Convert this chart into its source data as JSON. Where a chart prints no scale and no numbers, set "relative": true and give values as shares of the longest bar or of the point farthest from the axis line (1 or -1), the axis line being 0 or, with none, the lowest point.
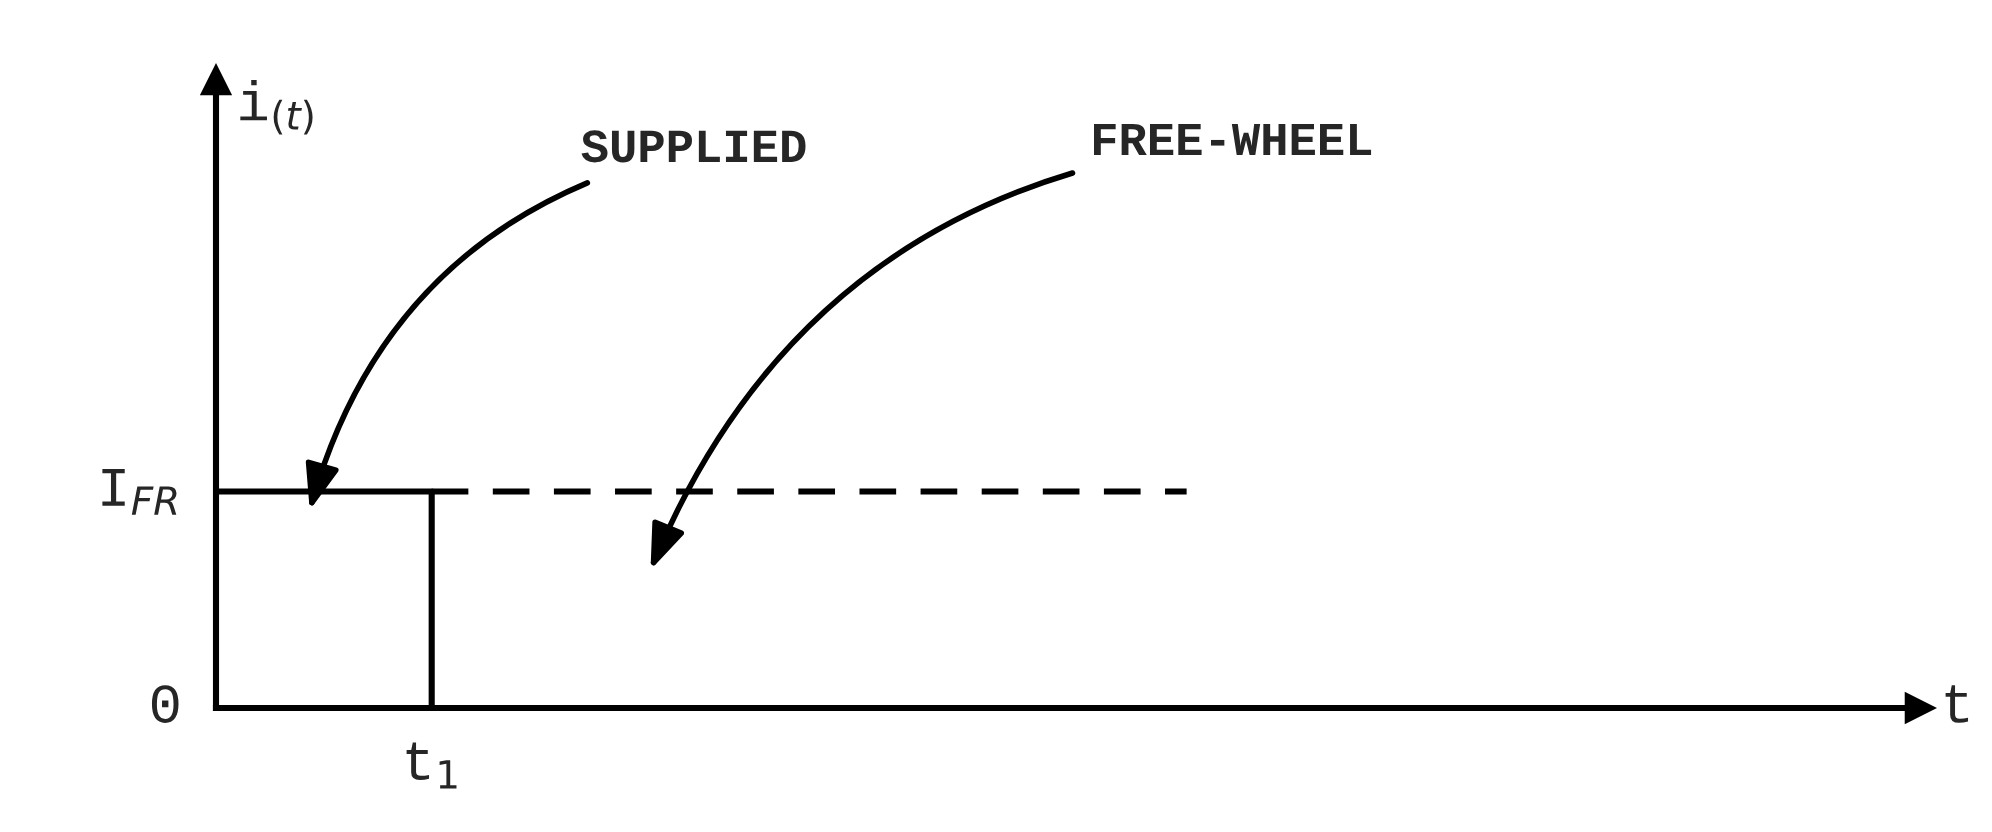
{
  "chart_data": {
    "type": "line",
    "xlabel": "t",
    "relative": true,
    "categories": [
      null,
      null,
      null,
      null,
      null,
      null,
      null,
      null,
      null,
      null,
      null,
      null,
      null,
      null,
      null,
      null
    ],
    "series": [
      {
        "type": "step",
        "color": "#000000",
        "values": [
          1,
          1,
          0,
          null,
          null,
          null,
          null,
          null,
          null,
          null,
          null,
          null,
          null,
          null,
          null,
          null
        ],
        "line_style": "solid"
      },
      {
        "color": "#000000",
        "values": [
          null,
          null,
          1,
          1,
          1,
          1,
          1,
          1,
          1,
          1,
          null,
          null,
          null,
          null,
          null,
          null
        ],
        "line_style": "dashed"
      }
    ],
    "annotations": [
      "0",
      "I$_{FR}$",
      "t$_{1}$",
      "SUPPLIED",
      "FREE-WHEEL",
      "i$_{(t)}$"
    ]
  }
}
